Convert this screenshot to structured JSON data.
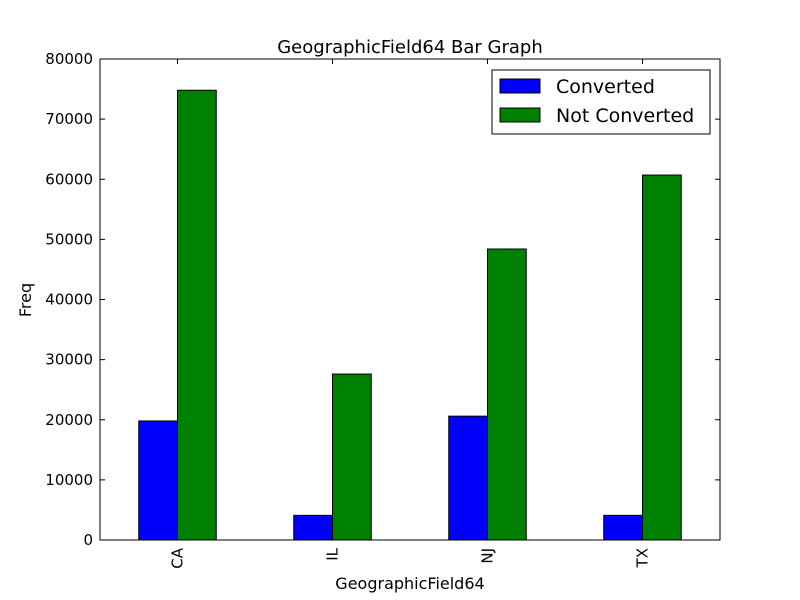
{
  "chart_data": {
    "type": "bar",
    "title": "GeographicField64 Bar Graph",
    "xlabel": "GeographicField64",
    "ylabel": "Freq",
    "categories": [
      "CA",
      "IL",
      "NJ",
      "TX"
    ],
    "series": [
      {
        "name": "Converted",
        "color": "#0000ff",
        "values": [
          19800,
          4100,
          20600,
          4100
        ]
      },
      {
        "name": "Not Converted",
        "color": "#008000",
        "values": [
          74800,
          27600,
          48400,
          60700
        ]
      }
    ],
    "ylim": [
      0,
      80000
    ],
    "yticks": [
      "0",
      "10000",
      "20000",
      "30000",
      "40000",
      "50000",
      "60000",
      "70000",
      "80000"
    ],
    "grid": false,
    "legend_position": "top-right",
    "x_tick_rotation": "vertical"
  }
}
